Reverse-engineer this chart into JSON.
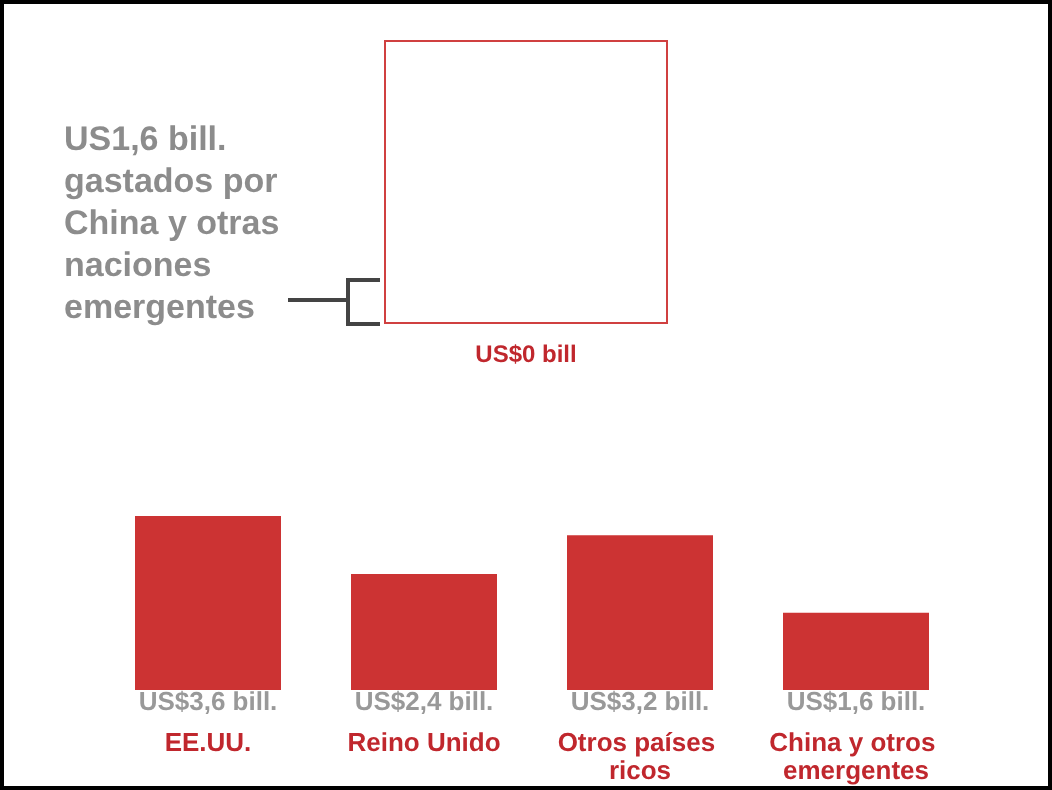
{
  "chart_data": {
    "type": "bar",
    "categories": [
      "EE.UU.",
      "Reino Unido",
      "Otros países ricos",
      "China y otros emergentes"
    ],
    "values": [
      3.6,
      2.4,
      3.2,
      1.6
    ],
    "value_labels": [
      "US$3,6 bill.",
      "US$2,4 bill.",
      "US$3,2 bill.",
      "US$1,6 bill."
    ],
    "color": "#cc3333",
    "annotations": [
      "US1,6 bill. gastados por China y otras naciones emergentes",
      "US$0 bill"
    ],
    "grid": false
  }
}
